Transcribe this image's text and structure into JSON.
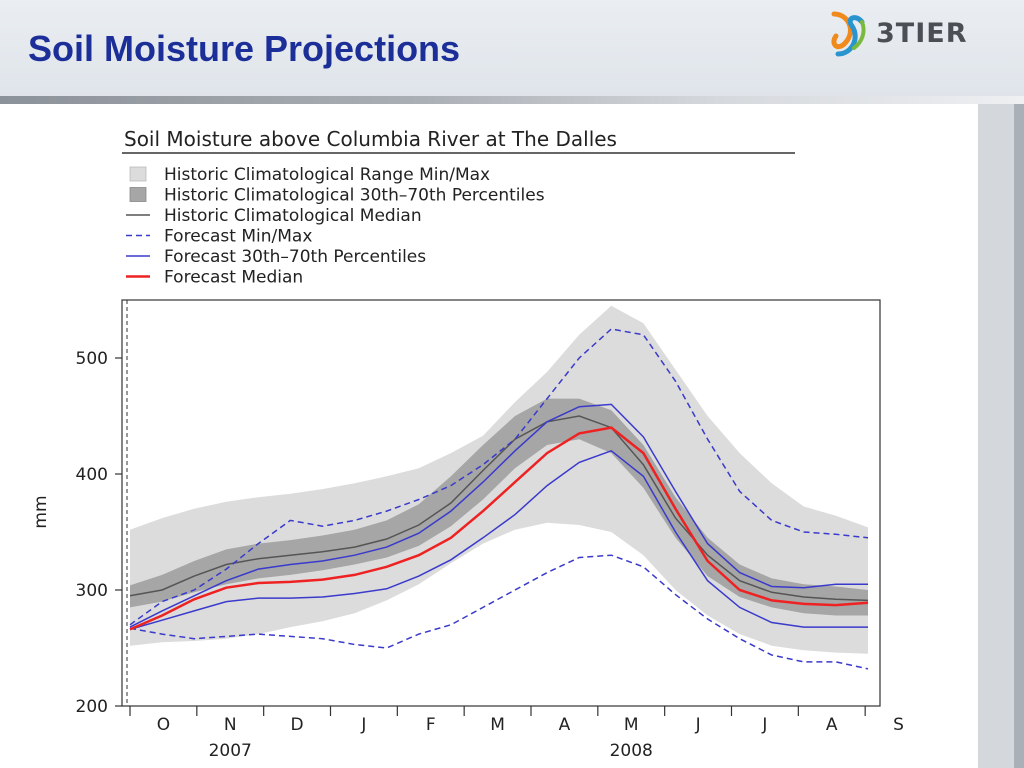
{
  "slide": {
    "title": "Soil Moisture Projections",
    "logo_text": "3TIER"
  },
  "chart_data": {
    "type": "area",
    "title": "Soil Moisture above Columbia River at The Dalles",
    "ylabel": "mm",
    "ylim": [
      200,
      550
    ],
    "yticks": [
      200,
      300,
      400,
      500
    ],
    "month_labels": [
      "O",
      "N",
      "D",
      "J",
      "F",
      "M",
      "A",
      "M",
      "J",
      "J",
      "A",
      "S"
    ],
    "year_labels": [
      {
        "label": "2007",
        "month_index": 1
      },
      {
        "label": "2008",
        "month_index": 7
      }
    ],
    "x": [
      0,
      0.5,
      1,
      1.5,
      2,
      2.5,
      3,
      3.5,
      4,
      4.5,
      5,
      5.5,
      6,
      6.5,
      7,
      7.5,
      8,
      8.5,
      9,
      9.5,
      10,
      10.5,
      11,
      11.5
    ],
    "legend": [
      {
        "label": "Historic Climatological Range Min/Max",
        "kind": "range",
        "color": "#dcdcdc"
      },
      {
        "label": "Historic Climatological 30th–70th Percentiles",
        "kind": "pband",
        "color": "#a6a6a6"
      },
      {
        "label": "Historic Climatological Median",
        "kind": "median",
        "color": "#555555"
      },
      {
        "label": "Forecast Min/Max",
        "kind": "fminmax",
        "color": "#3a3acc"
      },
      {
        "label": "Forecast 30th–70th Percentiles",
        "kind": "fp",
        "color": "#3a3acc"
      },
      {
        "label": "Forecast Median",
        "kind": "fmed",
        "color": "#ee2222"
      }
    ],
    "series": [
      {
        "key": "hist_max",
        "values": [
          352,
          362,
          370,
          376,
          380,
          383,
          387,
          392,
          398,
          405,
          418,
          433,
          462,
          488,
          520,
          545,
          530,
          490,
          450,
          418,
          392,
          372,
          364,
          354
        ]
      },
      {
        "key": "hist_min",
        "values": [
          252,
          255,
          256,
          258,
          262,
          268,
          273,
          280,
          291,
          305,
          323,
          340,
          352,
          358,
          356,
          350,
          330,
          300,
          278,
          262,
          252,
          248,
          246,
          245
        ]
      },
      {
        "key": "hist_p70",
        "values": [
          304,
          313,
          325,
          335,
          340,
          343,
          347,
          352,
          360,
          374,
          398,
          425,
          450,
          465,
          465,
          455,
          425,
          380,
          345,
          322,
          310,
          305,
          303,
          300
        ]
      },
      {
        "key": "hist_p30",
        "values": [
          285,
          290,
          298,
          305,
          310,
          313,
          317,
          322,
          328,
          338,
          355,
          378,
          405,
          425,
          430,
          418,
          388,
          345,
          312,
          294,
          285,
          280,
          278,
          278
        ]
      },
      {
        "key": "hist_median",
        "values": [
          295,
          300,
          312,
          322,
          327,
          330,
          333,
          337,
          344,
          356,
          375,
          403,
          430,
          445,
          450,
          440,
          408,
          362,
          330,
          308,
          298,
          294,
          292,
          291
        ]
      },
      {
        "key": "forecast_max",
        "values": [
          270,
          290,
          300,
          318,
          340,
          360,
          355,
          360,
          368,
          378,
          390,
          408,
          430,
          465,
          500,
          525,
          520,
          480,
          430,
          385,
          360,
          350,
          348,
          345
        ]
      },
      {
        "key": "forecast_min",
        "values": [
          267,
          262,
          258,
          260,
          262,
          260,
          258,
          253,
          250,
          262,
          270,
          285,
          300,
          315,
          328,
          330,
          320,
          296,
          275,
          258,
          244,
          238,
          238,
          232
        ]
      },
      {
        "key": "forecast_p70",
        "values": [
          268,
          282,
          295,
          308,
          318,
          322,
          325,
          330,
          337,
          349,
          368,
          393,
          420,
          445,
          458,
          460,
          432,
          385,
          340,
          315,
          303,
          302,
          305,
          305
        ]
      },
      {
        "key": "forecast_p30",
        "values": [
          266,
          274,
          282,
          290,
          293,
          293,
          294,
          297,
          301,
          312,
          326,
          345,
          365,
          390,
          410,
          420,
          398,
          350,
          308,
          285,
          272,
          268,
          268,
          268
        ]
      },
      {
        "key": "forecast_median",
        "values": [
          266,
          278,
          292,
          302,
          306,
          307,
          309,
          313,
          320,
          330,
          345,
          368,
          393,
          418,
          435,
          440,
          418,
          370,
          325,
          300,
          291,
          288,
          287,
          289
        ]
      }
    ]
  }
}
